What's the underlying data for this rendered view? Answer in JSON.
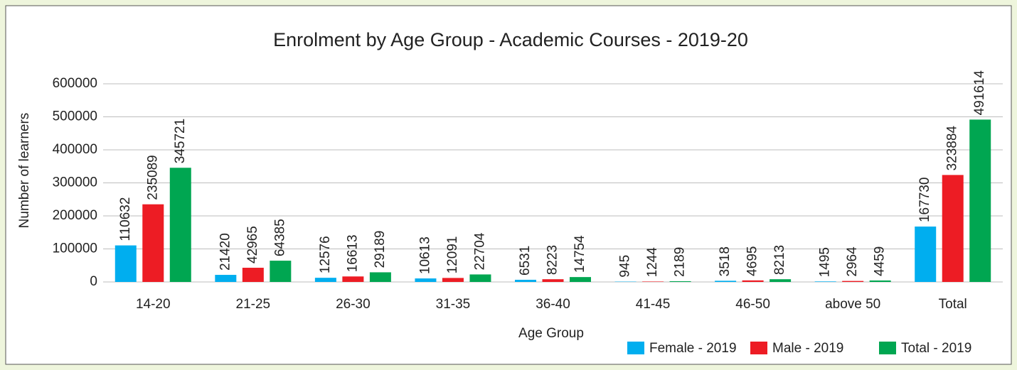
{
  "chart_data": {
    "type": "bar",
    "title": "Enrolment by Age Group - Academic Courses - 2019-20",
    "x_label": "Age Group",
    "y_label": "Number of learners",
    "categories": [
      "14-20",
      "21-25",
      "26-30",
      "31-35",
      "36-40",
      "41-45",
      "46-50",
      "above 50",
      "Total"
    ],
    "series": [
      {
        "name": "Female - 2019",
        "color": "#00aeef",
        "values": [
          110632,
          21420,
          12576,
          10613,
          6531,
          945,
          3518,
          1495,
          167730
        ]
      },
      {
        "name": "Male - 2019",
        "color": "#ed1c24",
        "values": [
          235089,
          42965,
          16613,
          12091,
          8223,
          1244,
          4695,
          2964,
          323884
        ]
      },
      {
        "name": "Total - 2019",
        "color": "#00a651",
        "values": [
          345721,
          64385,
          29189,
          22704,
          14754,
          2189,
          8213,
          4459,
          491614
        ]
      }
    ],
    "ylim": [
      0,
      600000
    ],
    "yticks": [
      0,
      100000,
      200000,
      300000,
      400000,
      500000,
      600000
    ],
    "grid": true,
    "legend": "bottom-right"
  }
}
